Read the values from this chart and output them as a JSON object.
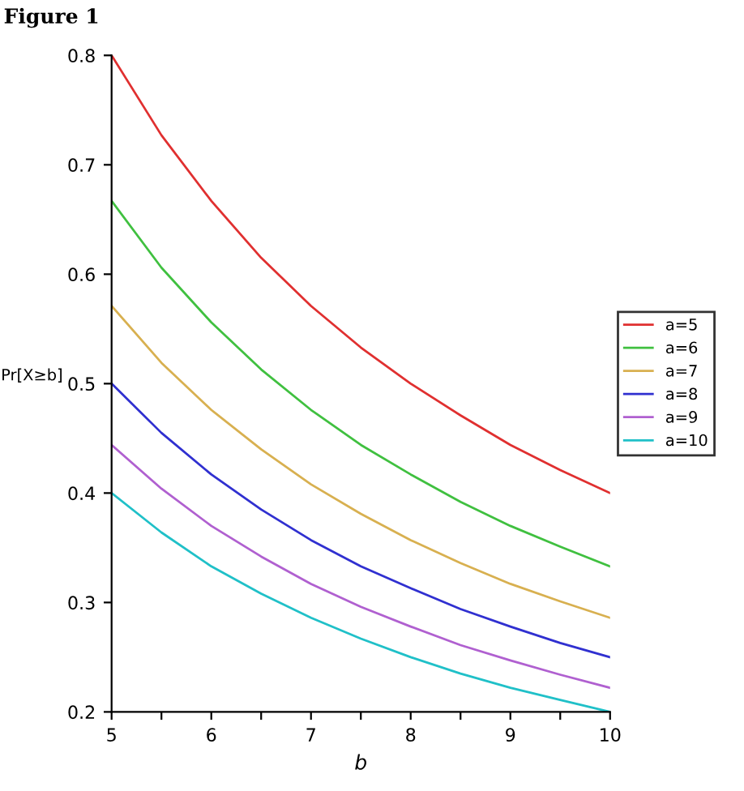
{
  "chart_data": {
    "type": "line",
    "title": "Figure 1",
    "xlabel": "b",
    "ylabel": "Pr[X≥b]",
    "x": [
      5,
      5.5,
      6,
      6.5,
      7,
      7.5,
      8,
      8.5,
      9,
      9.5,
      10
    ],
    "series": [
      {
        "name": "a=5",
        "color": "#e03030",
        "values": [
          0.8,
          0.727,
          0.667,
          0.615,
          0.571,
          0.533,
          0.5,
          0.471,
          0.444,
          0.421,
          0.4
        ]
      },
      {
        "name": "a=6",
        "color": "#40c040",
        "values": [
          0.667,
          0.606,
          0.556,
          0.513,
          0.476,
          0.444,
          0.417,
          0.392,
          0.37,
          0.351,
          0.333
        ]
      },
      {
        "name": "a=7",
        "color": "#d8b050",
        "values": [
          0.571,
          0.519,
          0.476,
          0.44,
          0.408,
          0.381,
          0.357,
          0.336,
          0.317,
          0.301,
          0.286
        ]
      },
      {
        "name": "a=8",
        "color": "#3030d0",
        "values": [
          0.5,
          0.455,
          0.417,
          0.385,
          0.357,
          0.333,
          0.313,
          0.294,
          0.278,
          0.263,
          0.25
        ]
      },
      {
        "name": "a=9",
        "color": "#b060d0",
        "values": [
          0.444,
          0.404,
          0.37,
          0.342,
          0.317,
          0.296,
          0.278,
          0.261,
          0.247,
          0.234,
          0.222
        ]
      },
      {
        "name": "a=10",
        "color": "#20c0c8",
        "values": [
          0.4,
          0.364,
          0.333,
          0.308,
          0.286,
          0.267,
          0.25,
          0.235,
          0.222,
          0.211,
          0.2
        ]
      }
    ],
    "xlim": [
      5,
      10
    ],
    "ylim": [
      0.2,
      0.8
    ],
    "xticks": [
      5,
      {
        "value": 5.5,
        "label": null
      },
      6,
      {
        "value": 6.5,
        "label": null
      },
      7,
      {
        "value": 7.5,
        "label": null
      },
      8,
      {
        "value": 8.5,
        "label": null
      },
      9,
      {
        "value": 9.5,
        "label": null
      },
      10
    ],
    "yticks": [
      0.2,
      0.3,
      0.4,
      0.5,
      0.6,
      0.7,
      0.8
    ],
    "grid": false,
    "legend": "right",
    "marker": "none",
    "line_style": "solid"
  }
}
